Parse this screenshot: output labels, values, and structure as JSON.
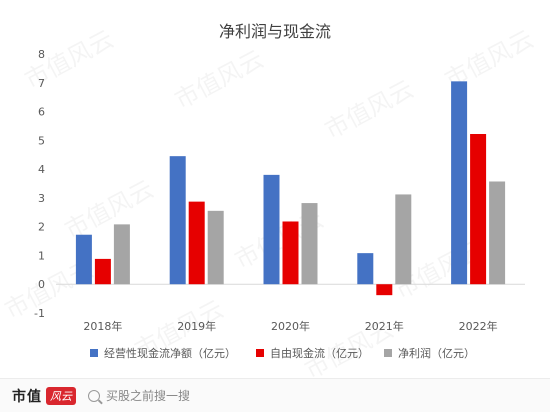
{
  "watermark": "市值风云",
  "footer": {
    "brand": "市值",
    "logo_text": "风云",
    "search_placeholder": "买股之前搜一搜"
  },
  "chart_data": {
    "type": "bar",
    "title": "净利润与现金流",
    "categories": [
      "2018年",
      "2019年",
      "2020年",
      "2021年",
      "2022年"
    ],
    "series": [
      {
        "name": "经营性现金流净额（亿元）",
        "color": "#4472c4",
        "values": [
          1.72,
          4.45,
          3.8,
          1.08,
          7.05
        ]
      },
      {
        "name": "自由现金流（亿元）",
        "color": "#e60000",
        "values": [
          0.88,
          2.87,
          2.18,
          -0.38,
          5.22
        ]
      },
      {
        "name": "净利润（亿元）",
        "color": "#a5a5a5",
        "values": [
          2.08,
          2.55,
          2.82,
          3.12,
          3.57
        ]
      }
    ],
    "ylim": [
      -1,
      8
    ],
    "yticks": [
      -1,
      0,
      1,
      2,
      3,
      4,
      5,
      6,
      7,
      8
    ],
    "xlabel": "",
    "ylabel": "",
    "grid": false,
    "legend_position": "bottom"
  }
}
